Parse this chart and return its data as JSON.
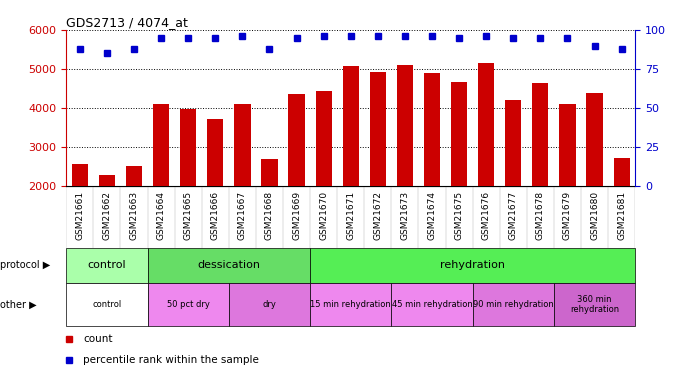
{
  "title": "GDS2713 / 4074_at",
  "samples": [
    "GSM21661",
    "GSM21662",
    "GSM21663",
    "GSM21664",
    "GSM21665",
    "GSM21666",
    "GSM21667",
    "GSM21668",
    "GSM21669",
    "GSM21670",
    "GSM21671",
    "GSM21672",
    "GSM21673",
    "GSM21674",
    "GSM21675",
    "GSM21676",
    "GSM21677",
    "GSM21678",
    "GSM21679",
    "GSM21680",
    "GSM21681"
  ],
  "bar_values": [
    2560,
    2270,
    2510,
    4090,
    3960,
    3720,
    4090,
    2680,
    4350,
    4430,
    5070,
    4920,
    5090,
    4890,
    4660,
    5160,
    4200,
    4630,
    4090,
    4380,
    2720
  ],
  "percentile_values": [
    88,
    85,
    88,
    95,
    95,
    95,
    96,
    88,
    95,
    96,
    96,
    96,
    96,
    96,
    95,
    96,
    95,
    95,
    95,
    90,
    88
  ],
  "bar_color": "#cc0000",
  "percentile_color": "#0000cc",
  "ylim_left": [
    2000,
    6000
  ],
  "ylim_right": [
    0,
    100
  ],
  "yticks_left": [
    2000,
    3000,
    4000,
    5000,
    6000
  ],
  "yticks_right": [
    0,
    25,
    50,
    75,
    100
  ],
  "protocol_groups": [
    {
      "label": "control",
      "start": 0,
      "end": 3,
      "color": "#aaffaa"
    },
    {
      "label": "dessication",
      "start": 3,
      "end": 9,
      "color": "#66dd66"
    },
    {
      "label": "rehydration",
      "start": 9,
      "end": 21,
      "color": "#55ee55"
    }
  ],
  "other_groups": [
    {
      "label": "control",
      "start": 0,
      "end": 3,
      "color": "#ffffff"
    },
    {
      "label": "50 pct dry",
      "start": 3,
      "end": 6,
      "color": "#ee88ee"
    },
    {
      "label": "dry",
      "start": 6,
      "end": 9,
      "color": "#dd77dd"
    },
    {
      "label": "15 min rehydration",
      "start": 9,
      "end": 12,
      "color": "#ee88ee"
    },
    {
      "label": "45 min rehydration",
      "start": 12,
      "end": 15,
      "color": "#ee88ee"
    },
    {
      "label": "90 min rehydration",
      "start": 15,
      "end": 18,
      "color": "#dd77dd"
    },
    {
      "label": "360 min\nrehydration",
      "start": 18,
      "end": 21,
      "color": "#cc66cc"
    }
  ],
  "legend_items": [
    {
      "label": "count",
      "color": "#cc0000"
    },
    {
      "label": "percentile rank within the sample",
      "color": "#0000cc"
    }
  ],
  "background_color": "#ffffff",
  "tick_color_left": "#cc0000",
  "tick_color_right": "#0000cc"
}
